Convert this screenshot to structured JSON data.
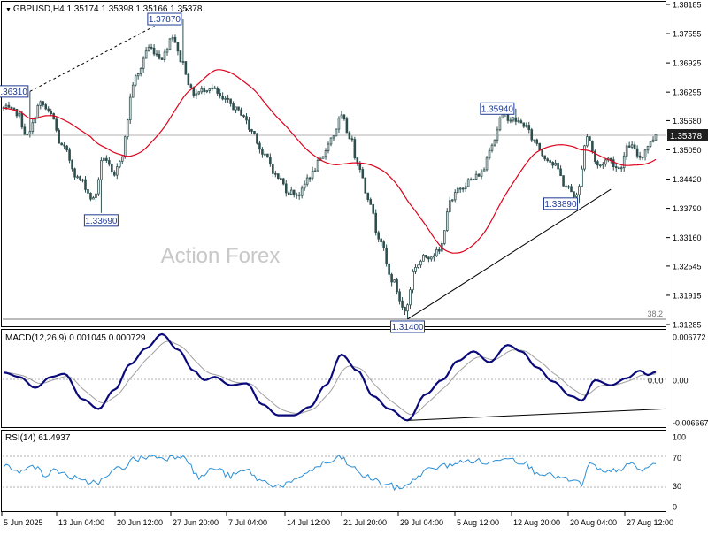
{
  "symbol_line": {
    "symbol": "GBPUSD,H4",
    "open": "1.35174",
    "high": "1.35398",
    "low": "1.35166",
    "close": "1.35378"
  },
  "watermark": "Action Forex",
  "colors": {
    "background": "#ffffff",
    "grid": "#b0b0b0",
    "candle": "#2f4f4f",
    "moving_average": "#e0001b",
    "label_border": "#1f3a93",
    "label_fill": "#ffffff",
    "price_tag": "#1f1f1f",
    "macd_line": "#0a0a7a",
    "signal_line": "#a0a0a0",
    "rsi_line": "#2a8fd6",
    "level_line": "#777777",
    "trendline": "#000000",
    "watermark": "#c8c8c8"
  },
  "chart_data": [
    {
      "type": "candlestick",
      "title": "GBPUSD,H4",
      "ylim": [
        1.31285,
        1.38185
      ],
      "yticks": [
        "1.38185",
        "1.37555",
        "1.36925",
        "1.36295",
        "1.35680",
        "1.35050",
        "1.34420",
        "1.33790",
        "1.33160",
        "1.32545",
        "1.31915",
        "1.31285"
      ],
      "last_price": "1.35378",
      "xticks": [
        "5 Jun 2025",
        "13 Jun 04:00",
        "20 Jun 12:00",
        "27 Jun 20:00",
        "7 Jul 04:00",
        "14 Jul 12:00",
        "21 Jul 20:00",
        "29 Jul 04:00",
        "5 Aug 12:00",
        "12 Aug 20:00",
        "20 Aug 04:00",
        "27 Aug 12:00"
      ],
      "anchors": [
        {
          "i": 0,
          "p": 1.3595
        },
        {
          "i": 5,
          "p": 1.3585
        },
        {
          "i": 9,
          "p": 1.3535
        },
        {
          "i": 14,
          "p": 1.3605
        },
        {
          "i": 18,
          "p": 1.358
        },
        {
          "i": 22,
          "p": 1.3512
        },
        {
          "i": 29,
          "p": 1.344
        },
        {
          "i": 34,
          "p": 1.3398
        },
        {
          "i": 38,
          "p": 1.349
        },
        {
          "i": 42,
          "p": 1.3445
        },
        {
          "i": 44,
          "p": 1.3485
        },
        {
          "i": 50,
          "p": 1.366
        },
        {
          "i": 55,
          "p": 1.3725
        },
        {
          "i": 60,
          "p": 1.3705
        },
        {
          "i": 64,
          "p": 1.3752
        },
        {
          "i": 67,
          "p": 1.37
        },
        {
          "i": 72,
          "p": 1.3625
        },
        {
          "i": 78,
          "p": 1.364
        },
        {
          "i": 84,
          "p": 1.361
        },
        {
          "i": 90,
          "p": 1.3585
        },
        {
          "i": 94,
          "p": 1.3545
        },
        {
          "i": 99,
          "p": 1.349
        },
        {
          "i": 104,
          "p": 1.3445
        },
        {
          "i": 108,
          "p": 1.3415
        },
        {
          "i": 112,
          "p": 1.341
        },
        {
          "i": 116,
          "p": 1.345
        },
        {
          "i": 120,
          "p": 1.348
        },
        {
          "i": 124,
          "p": 1.353
        },
        {
          "i": 128,
          "p": 1.3575
        },
        {
          "i": 131,
          "p": 1.3535
        },
        {
          "i": 134,
          "p": 1.348
        },
        {
          "i": 138,
          "p": 1.3405
        },
        {
          "i": 142,
          "p": 1.332
        },
        {
          "i": 147,
          "p": 1.3225
        },
        {
          "i": 152,
          "p": 1.3158
        },
        {
          "i": 156,
          "p": 1.3255
        },
        {
          "i": 160,
          "p": 1.3275
        },
        {
          "i": 165,
          "p": 1.3285
        },
        {
          "i": 169,
          "p": 1.339
        },
        {
          "i": 173,
          "p": 1.3425
        },
        {
          "i": 177,
          "p": 1.344
        },
        {
          "i": 181,
          "p": 1.3455
        },
        {
          "i": 185,
          "p": 1.352
        },
        {
          "i": 189,
          "p": 1.358
        },
        {
          "i": 193,
          "p": 1.357
        },
        {
          "i": 197,
          "p": 1.356
        },
        {
          "i": 201,
          "p": 1.3525
        },
        {
          "i": 205,
          "p": 1.349
        },
        {
          "i": 209,
          "p": 1.347
        },
        {
          "i": 213,
          "p": 1.3425
        },
        {
          "i": 217,
          "p": 1.3405
        },
        {
          "i": 221,
          "p": 1.3535
        },
        {
          "i": 225,
          "p": 1.347
        },
        {
          "i": 229,
          "p": 1.3485
        },
        {
          "i": 233,
          "p": 1.3465
        },
        {
          "i": 237,
          "p": 1.3515
        },
        {
          "i": 241,
          "p": 1.349
        },
        {
          "i": 245,
          "p": 1.352
        },
        {
          "i": 247,
          "p": 1.3538
        }
      ],
      "fixed_extremes": [
        {
          "i": 10,
          "high": 1.3631
        },
        {
          "i": 37,
          "low": 1.3369
        },
        {
          "i": 68,
          "high": 1.3787
        },
        {
          "i": 153,
          "low": 1.314
        },
        {
          "i": 194,
          "high": 1.3594
        },
        {
          "i": 218,
          "low": 1.3389
        }
      ],
      "callouts": [
        {
          "text": "1.36310",
          "i": 10,
          "p": 1.3631,
          "side": "left"
        },
        {
          "text": "1.33690",
          "i": 37,
          "p": 1.3369,
          "side": "below"
        },
        {
          "text": "1.37870",
          "i": 68,
          "p": 1.3787,
          "side": "left"
        },
        {
          "text": "1.31400",
          "i": 153,
          "p": 1.314,
          "side": "below"
        },
        {
          "text": "1.35940",
          "i": 194,
          "p": 1.3594,
          "side": "left"
        },
        {
          "text": "1.33890",
          "i": 218,
          "p": 1.3389,
          "side": "left"
        }
      ],
      "trendlines": [
        {
          "style": "dashed",
          "from": {
            "i": 10,
            "p": 1.3631
          },
          "to": {
            "i": 70,
            "p": 1.381
          }
        },
        {
          "style": "solid",
          "from": {
            "i": 153,
            "p": 1.314
          },
          "to": {
            "i": 230,
            "p": 1.342
          }
        }
      ],
      "horizontal_level": {
        "price": 1.314,
        "label": "38.2"
      },
      "moving_average_period": 34
    },
    {
      "type": "line",
      "title": "MACD(12,26,9) 0.001045 0.000729",
      "indicator": "MACD(12,26,9)",
      "values_label": "0.001045 0.000729",
      "ylim": [
        -0.006667,
        0.006772
      ],
      "yticks": [
        "0.006772",
        "0.00",
        "-0.006667"
      ],
      "last_value": "0.00",
      "anchors": [
        {
          "i": 0,
          "v": 0.0012
        },
        {
          "i": 6,
          "v": 0.0005
        },
        {
          "i": 12,
          "v": -0.0012
        },
        {
          "i": 18,
          "v": 0.0005
        },
        {
          "i": 23,
          "v": 0.001
        },
        {
          "i": 30,
          "v": -0.003
        },
        {
          "i": 36,
          "v": -0.0045
        },
        {
          "i": 42,
          "v": -0.0015
        },
        {
          "i": 48,
          "v": 0.0025
        },
        {
          "i": 54,
          "v": 0.005
        },
        {
          "i": 60,
          "v": 0.0072
        },
        {
          "i": 66,
          "v": 0.0048
        },
        {
          "i": 72,
          "v": 0.0015
        },
        {
          "i": 76,
          "v": 0.0
        },
        {
          "i": 80,
          "v": 0.0005
        },
        {
          "i": 86,
          "v": -0.0008
        },
        {
          "i": 92,
          "v": -0.0005
        },
        {
          "i": 98,
          "v": -0.0038
        },
        {
          "i": 104,
          "v": -0.0055
        },
        {
          "i": 110,
          "v": -0.0055
        },
        {
          "i": 116,
          "v": -0.0042
        },
        {
          "i": 122,
          "v": -0.0008
        },
        {
          "i": 128,
          "v": 0.004
        },
        {
          "i": 134,
          "v": 0.0015
        },
        {
          "i": 140,
          "v": -0.0025
        },
        {
          "i": 146,
          "v": -0.0045
        },
        {
          "i": 153,
          "v": -0.0063
        },
        {
          "i": 160,
          "v": -0.0022
        },
        {
          "i": 166,
          "v": 0.0
        },
        {
          "i": 172,
          "v": 0.003
        },
        {
          "i": 178,
          "v": 0.0045
        },
        {
          "i": 184,
          "v": 0.0028
        },
        {
          "i": 191,
          "v": 0.0055
        },
        {
          "i": 196,
          "v": 0.0045
        },
        {
          "i": 202,
          "v": 0.002
        },
        {
          "i": 208,
          "v": -0.0002
        },
        {
          "i": 215,
          "v": -0.0025
        },
        {
          "i": 219,
          "v": -0.0032
        },
        {
          "i": 224,
          "v": 0.0
        },
        {
          "i": 230,
          "v": -0.0008
        },
        {
          "i": 236,
          "v": 0.0003
        },
        {
          "i": 241,
          "v": 0.0015
        },
        {
          "i": 244,
          "v": 0.0008
        },
        {
          "i": 247,
          "v": 0.0013
        }
      ],
      "trendline": {
        "from": {
          "i": 153,
          "v": -0.0063
        },
        "to": {
          "i": 248,
          "v": -0.0045
        }
      }
    },
    {
      "type": "line",
      "title": "RSI(14) 61.4937",
      "indicator": "RSI(14)",
      "values_label": "61.4937",
      "ylim": [
        0,
        100
      ],
      "yticks": [
        "100",
        "70",
        "30",
        "0"
      ],
      "levels": [
        70,
        30
      ],
      "anchors": [
        {
          "i": 0,
          "v": 60
        },
        {
          "i": 6,
          "v": 48
        },
        {
          "i": 10,
          "v": 62
        },
        {
          "i": 16,
          "v": 45
        },
        {
          "i": 20,
          "v": 52
        },
        {
          "i": 26,
          "v": 42
        },
        {
          "i": 30,
          "v": 35
        },
        {
          "i": 36,
          "v": 36
        },
        {
          "i": 44,
          "v": 55
        },
        {
          "i": 50,
          "v": 68
        },
        {
          "i": 56,
          "v": 72
        },
        {
          "i": 62,
          "v": 70
        },
        {
          "i": 68,
          "v": 74
        },
        {
          "i": 74,
          "v": 42
        },
        {
          "i": 80,
          "v": 55
        },
        {
          "i": 86,
          "v": 44
        },
        {
          "i": 92,
          "v": 52
        },
        {
          "i": 98,
          "v": 36
        },
        {
          "i": 104,
          "v": 30
        },
        {
          "i": 110,
          "v": 35
        },
        {
          "i": 116,
          "v": 52
        },
        {
          "i": 122,
          "v": 62
        },
        {
          "i": 128,
          "v": 70
        },
        {
          "i": 132,
          "v": 55
        },
        {
          "i": 138,
          "v": 42
        },
        {
          "i": 144,
          "v": 33
        },
        {
          "i": 150,
          "v": 26
        },
        {
          "i": 154,
          "v": 35
        },
        {
          "i": 160,
          "v": 52
        },
        {
          "i": 166,
          "v": 58
        },
        {
          "i": 172,
          "v": 63
        },
        {
          "i": 178,
          "v": 66
        },
        {
          "i": 184,
          "v": 62
        },
        {
          "i": 190,
          "v": 72
        },
        {
          "i": 196,
          "v": 65
        },
        {
          "i": 202,
          "v": 50
        },
        {
          "i": 208,
          "v": 44
        },
        {
          "i": 214,
          "v": 38
        },
        {
          "i": 219,
          "v": 33
        },
        {
          "i": 222,
          "v": 60
        },
        {
          "i": 228,
          "v": 48
        },
        {
          "i": 234,
          "v": 55
        },
        {
          "i": 238,
          "v": 60
        },
        {
          "i": 242,
          "v": 52
        },
        {
          "i": 247,
          "v": 61.4937
        }
      ]
    }
  ]
}
